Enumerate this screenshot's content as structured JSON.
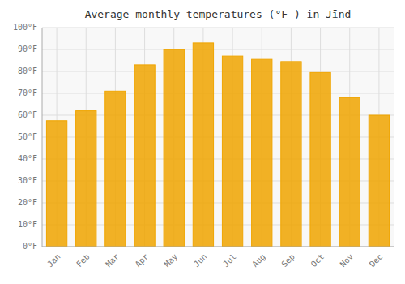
{
  "chart_data": {
    "type": "bar",
    "title": "Average monthly temperatures (°F ) in Jīnd",
    "categories": [
      "Jan",
      "Feb",
      "Mar",
      "Apr",
      "May",
      "Jun",
      "Jul",
      "Aug",
      "Sep",
      "Oct",
      "Nov",
      "Dec"
    ],
    "values": [
      57.5,
      62,
      71,
      83,
      90,
      93,
      87,
      85.5,
      84.5,
      79.5,
      68,
      60
    ],
    "color": "#F0A500",
    "ylim": [
      0,
      100
    ],
    "yticks": [
      {
        "value": 0,
        "label": "0°F"
      },
      {
        "value": 10,
        "label": "10°F"
      },
      {
        "value": 20,
        "label": "20°F"
      },
      {
        "value": 30,
        "label": "30°F"
      },
      {
        "value": 40,
        "label": "40°F"
      },
      {
        "value": 50,
        "label": "50°F"
      },
      {
        "value": 60,
        "label": "60°F"
      },
      {
        "value": 70,
        "label": "70°F"
      },
      {
        "value": 80,
        "label": "80°F"
      },
      {
        "value": 90,
        "label": "90°F"
      },
      {
        "value": 100,
        "label": "100°F"
      }
    ],
    "grid": true
  }
}
